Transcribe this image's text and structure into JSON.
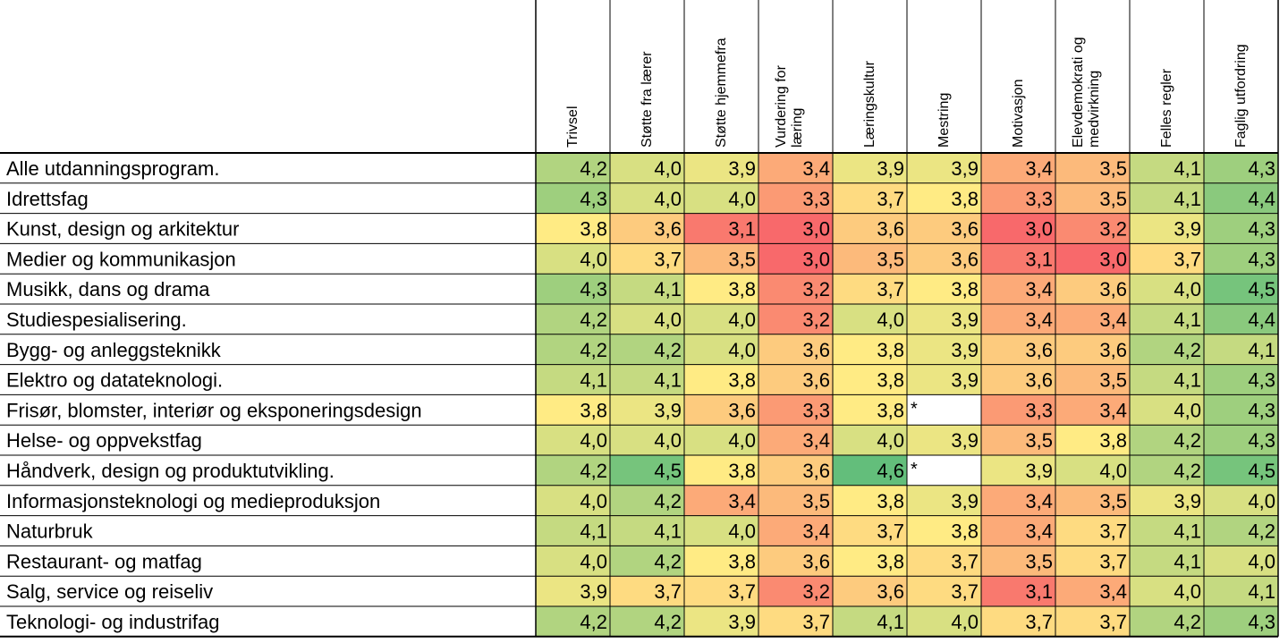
{
  "chart_data": {
    "type": "heatmap",
    "columns": [
      "Trivsel",
      "Støtte fra lærer",
      "Støtte hjemmefra",
      "Vurdering for\nlæring",
      "Læringskultur",
      "Mestring",
      "Motivasjon",
      "Elevdemokrati og\nmedvirkning",
      "Felles regler",
      "Faglig utfordring"
    ],
    "rows": [
      {
        "label": "Alle utdanningsprogram.",
        "values": [
          "4,2",
          "4,0",
          "3,9",
          "3,4",
          "3,9",
          "3,9",
          "3,4",
          "3,5",
          "4,1",
          "4,3"
        ]
      },
      {
        "label": "Idrettsfag",
        "values": [
          "4,3",
          "4,0",
          "4,0",
          "3,3",
          "3,7",
          "3,8",
          "3,3",
          "3,5",
          "4,1",
          "4,4"
        ]
      },
      {
        "label": "Kunst, design og arkitektur",
        "values": [
          "3,8",
          "3,6",
          "3,1",
          "3,0",
          "3,6",
          "3,6",
          "3,0",
          "3,2",
          "3,9",
          "4,3"
        ]
      },
      {
        "label": "Medier og kommunikasjon",
        "values": [
          "4,0",
          "3,7",
          "3,5",
          "3,0",
          "3,5",
          "3,6",
          "3,1",
          "3,0",
          "3,7",
          "4,3"
        ]
      },
      {
        "label": "Musikk, dans og drama",
        "values": [
          "4,3",
          "4,1",
          "3,8",
          "3,2",
          "3,7",
          "3,8",
          "3,4",
          "3,6",
          "4,0",
          "4,5"
        ]
      },
      {
        "label": "Studiespesialisering.",
        "values": [
          "4,2",
          "4,0",
          "4,0",
          "3,2",
          "4,0",
          "3,9",
          "3,4",
          "3,4",
          "4,1",
          "4,4"
        ]
      },
      {
        "label": "Bygg- og anleggsteknikk",
        "values": [
          "4,2",
          "4,2",
          "4,0",
          "3,6",
          "3,8",
          "3,9",
          "3,6",
          "3,6",
          "4,2",
          "4,1"
        ]
      },
      {
        "label": "Elektro og datateknologi.",
        "values": [
          "4,1",
          "4,1",
          "3,8",
          "3,6",
          "3,8",
          "3,9",
          "3,6",
          "3,5",
          "4,1",
          "4,3"
        ]
      },
      {
        "label": "Frisør, blomster, interiør og eksponeringsdesign",
        "values": [
          "3,8",
          "3,9",
          "3,6",
          "3,3",
          "3,8",
          "*",
          "3,3",
          "3,4",
          "4,0",
          "4,3"
        ]
      },
      {
        "label": "Helse- og oppvekstfag",
        "values": [
          "4,0",
          "4,0",
          "4,0",
          "3,4",
          "4,0",
          "3,9",
          "3,5",
          "3,8",
          "4,2",
          "4,3"
        ]
      },
      {
        "label": "Håndverk, design og produktutvikling.",
        "values": [
          "4,2",
          "4,5",
          "3,8",
          "3,6",
          "4,6",
          "*",
          "3,9",
          "4,0",
          "4,2",
          "4,5"
        ]
      },
      {
        "label": "Informasjonsteknologi og medieproduksjon",
        "values": [
          "4,0",
          "4,2",
          "3,4",
          "3,5",
          "3,8",
          "3,9",
          "3,4",
          "3,5",
          "3,9",
          "4,0"
        ]
      },
      {
        "label": "Naturbruk",
        "values": [
          "4,1",
          "4,1",
          "4,0",
          "3,4",
          "3,7",
          "3,8",
          "3,4",
          "3,7",
          "4,1",
          "4,2"
        ]
      },
      {
        "label": "Restaurant- og matfag",
        "values": [
          "4,0",
          "4,2",
          "3,8",
          "3,6",
          "3,8",
          "3,7",
          "3,5",
          "3,7",
          "4,1",
          "4,0"
        ]
      },
      {
        "label": "Salg, service og reiseliv",
        "values": [
          "3,9",
          "3,7",
          "3,7",
          "3,2",
          "3,6",
          "3,7",
          "3,1",
          "3,4",
          "4,0",
          "4,1"
        ]
      },
      {
        "label": "Teknologi- og industrifag",
        "values": [
          "4,2",
          "4,2",
          "3,9",
          "3,7",
          "4,1",
          "4,0",
          "3,7",
          "3,7",
          "4,2",
          "4,3"
        ]
      }
    ],
    "color_scale": {
      "low": "#f8696b",
      "mid": "#ffeb84",
      "high": "#63be7b",
      "low_value": 3.0,
      "mid_value": 3.8,
      "high_value": 4.6
    },
    "missing_color": "#ffffff",
    "grid_color": "#000000"
  }
}
